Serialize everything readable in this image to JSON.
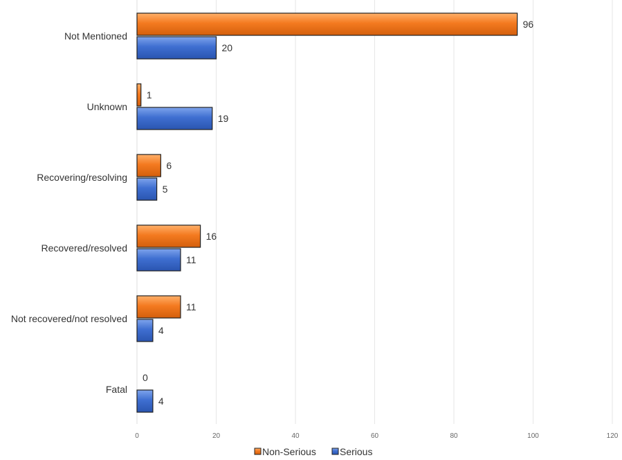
{
  "chart_data": {
    "type": "bar",
    "orientation": "horizontal",
    "categories": [
      "Not Mentioned",
      "Unknown",
      "Recovering/resolving",
      "Recovered/resolved",
      "Not recovered/not resolved",
      "Fatal"
    ],
    "series": [
      {
        "name": "Non-Serious",
        "values": [
          96,
          1,
          6,
          16,
          11,
          0
        ],
        "color": "#f47a20"
      },
      {
        "name": "Serious",
        "values": [
          20,
          19,
          5,
          11,
          4,
          4
        ],
        "color": "#3f6fd1"
      }
    ],
    "xlim": [
      0,
      120
    ],
    "xticks": [
      0,
      20,
      40,
      60,
      80,
      100,
      120
    ],
    "title": "",
    "xlabel": "",
    "ylabel": "",
    "grid": "vertical",
    "legend": "bottom-center",
    "data_labels": true
  }
}
